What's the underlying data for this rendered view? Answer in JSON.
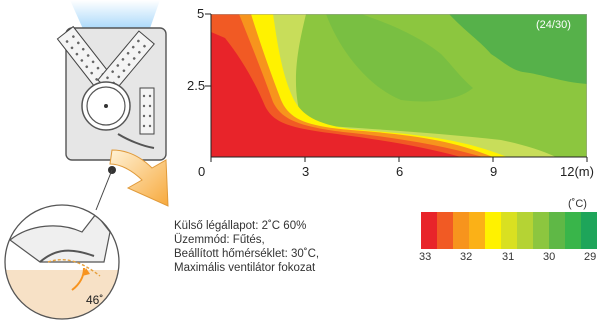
{
  "page_indicator": "(24/30)",
  "x_axis": {
    "ticks": [
      "0",
      "3",
      "6",
      "9",
      "12(m)"
    ],
    "max": 12
  },
  "y_axis": {
    "ticks": [
      "5",
      "2.5"
    ],
    "max": 5
  },
  "conditions": [
    "Külső légállapot: 2˚C 60%",
    "Üzemmód: Fűtés,",
    "Beállított hőmérséklet: 30˚C,",
    "Maximális ventilátor fokozat"
  ],
  "louver_angle": "46˚",
  "legend": {
    "unit": "(˚C)",
    "labels": [
      "33",
      "32",
      "31",
      "30",
      "29"
    ],
    "colors": [
      "#e8242a",
      "#f15a24",
      "#f7941d",
      "#fbb117",
      "#fff200",
      "#d9e021",
      "#b5d334",
      "#8cc63f",
      "#5fb846",
      "#39b54a",
      "#1ea55a"
    ]
  },
  "zone_colors": {
    "red": "#e8242a",
    "orange_red": "#f15a24",
    "orange": "#f7941d",
    "yellow": "#fff200",
    "light_green": "#c8dd5a",
    "green": "#8cc63f",
    "mid_green": "#6dbb45",
    "dark_green": "#56b14a"
  }
}
